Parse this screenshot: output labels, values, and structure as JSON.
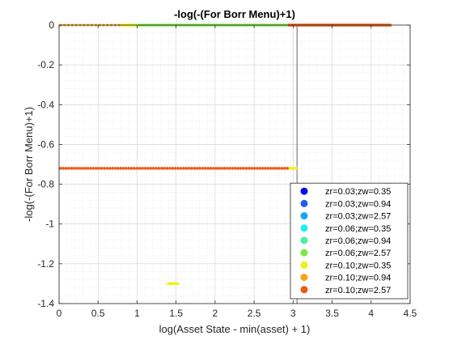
{
  "chart_data": {
    "type": "scatter",
    "title": "-log(-(For Borr Menu)+1)",
    "xlabel": "log(Asset State - min(asset) + 1)",
    "ylabel": "-log(-(For Borr Menu)+1)",
    "xlim": [
      0,
      4.5
    ],
    "ylim": [
      -1.4,
      0
    ],
    "xticks": [
      0,
      0.5,
      1,
      1.5,
      2,
      2.5,
      3,
      3.5,
      4,
      4.5
    ],
    "xtick_labels": [
      "0",
      "0.5",
      "1",
      "1.5",
      "2",
      "2.5",
      "3",
      "3.5",
      "4",
      "4.5"
    ],
    "yticks": [
      0,
      -0.2,
      -0.4,
      -0.6,
      -0.8,
      -1,
      -1.2,
      -1.4
    ],
    "ytick_labels": [
      "0",
      "-0.2",
      "-0.4",
      "-0.6",
      "-0.8",
      "-1",
      "-1.2",
      "-1.4"
    ],
    "grid": true,
    "minor_grid": true,
    "legend_position": "bottom-right",
    "reference_line": {
      "x": 3.05,
      "color": "#555555"
    },
    "series": [
      {
        "name": "zr=0.03;zw=0.35",
        "color": "#0a0af0",
        "segments": []
      },
      {
        "name": "zr=0.03;zw=0.94",
        "color": "#1f5fe8",
        "segments": []
      },
      {
        "name": "zr=0.03;zw=2.57",
        "color": "#14a8f0",
        "segments": []
      },
      {
        "name": "zr=0.06;zw=0.35",
        "color": "#1ef0f0",
        "segments": []
      },
      {
        "name": "zr=0.06;zw=0.94",
        "color": "#46f0a0",
        "segments": []
      },
      {
        "name": "zr=0.06;zw=2.57",
        "color": "#7ce84a",
        "segments": [
          {
            "y": 0,
            "x_start": 0.9,
            "x_end": 2.95,
            "step": 0.02
          }
        ]
      },
      {
        "name": "zr=0.10;zw=0.35",
        "color": "#f0f014",
        "segments": [
          {
            "y": 0,
            "x_start": 0.8,
            "x_end": 1.0,
            "step": 0.02
          },
          {
            "y": -0.72,
            "x_start": 2.95,
            "x_end": 3.05,
            "step": 0.03
          },
          {
            "y": -1.3,
            "x_start": 1.4,
            "x_end": 1.52,
            "step": 0.02
          }
        ]
      },
      {
        "name": "zr=0.10;zw=0.94",
        "color": "#f4a41e",
        "segments": [
          {
            "y": 0,
            "x_start": 0.02,
            "x_end": 0.78,
            "step": 0.05
          }
        ]
      },
      {
        "name": "zr=0.10;zw=2.57",
        "color": "#ec5a14",
        "segments": [
          {
            "y": 0,
            "x_start": 2.95,
            "x_end": 4.25,
            "step": 0.012
          },
          {
            "y": -0.72,
            "x_start": 0.02,
            "x_end": 2.95,
            "step": 0.035
          }
        ]
      }
    ]
  }
}
